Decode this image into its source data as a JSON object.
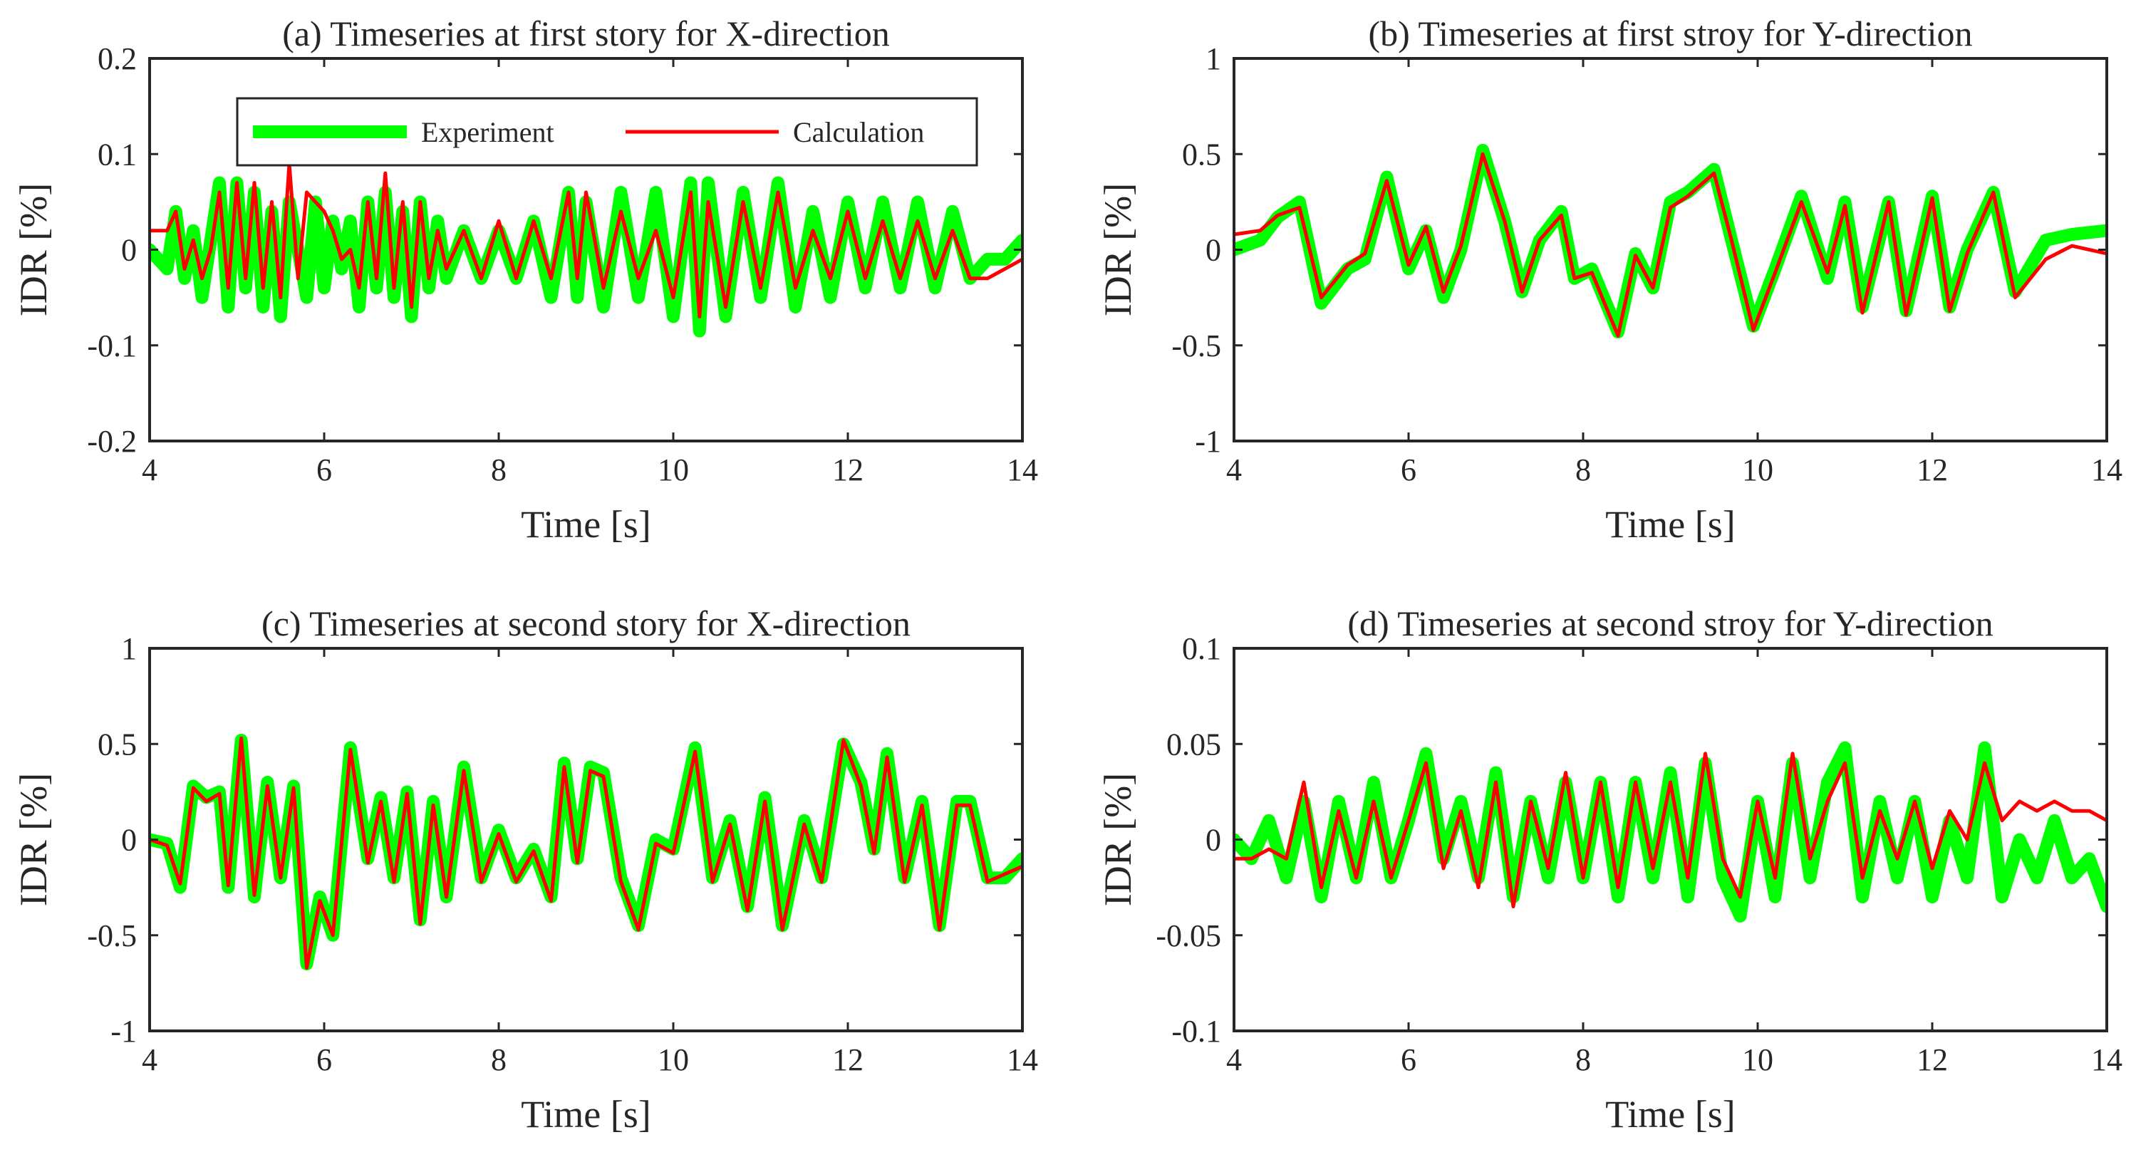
{
  "figure": {
    "legend": {
      "experiment_label": "Experiment",
      "calculation_label": "Calculation",
      "experiment_color": "#00ff00",
      "calculation_color": "#ff0000"
    }
  },
  "chart_data": [
    {
      "id": "a",
      "type": "line",
      "title": "(a) Timeseries at first story for X-direction",
      "xlabel": "Time [s]",
      "ylabel": "IDR [%]",
      "xlim": [
        4,
        14
      ],
      "ylim": [
        -0.2,
        0.2
      ],
      "xticks": [
        4,
        6,
        8,
        10,
        12,
        14
      ],
      "xtick_labels": [
        "4",
        "6",
        "8",
        "10",
        "12",
        "14"
      ],
      "yticks": [
        0.2,
        0.1,
        0,
        -0.1,
        -0.2
      ],
      "ytick_labels": [
        "0.2",
        "0.1",
        "0",
        "-0.1",
        "-0.2"
      ],
      "legend": true,
      "series": [
        {
          "name": "Experiment",
          "x": [
            4.0,
            4.2,
            4.3,
            4.4,
            4.5,
            4.6,
            4.7,
            4.8,
            4.9,
            5.0,
            5.1,
            5.2,
            5.3,
            5.4,
            5.5,
            5.6,
            5.7,
            5.8,
            5.9,
            6.0,
            6.1,
            6.2,
            6.3,
            6.4,
            6.5,
            6.6,
            6.7,
            6.8,
            6.9,
            7.0,
            7.1,
            7.2,
            7.3,
            7.4,
            7.6,
            7.8,
            8.0,
            8.2,
            8.4,
            8.6,
            8.8,
            8.9,
            9.0,
            9.2,
            9.4,
            9.6,
            9.8,
            10.0,
            10.2,
            10.3,
            10.4,
            10.6,
            10.8,
            11.0,
            11.2,
            11.4,
            11.6,
            11.8,
            12.0,
            12.2,
            12.4,
            12.6,
            12.8,
            13.0,
            13.2,
            13.4,
            13.6,
            13.8,
            14.0
          ],
          "y": [
            0.0,
            -0.02,
            0.04,
            -0.03,
            0.02,
            -0.05,
            0.01,
            0.07,
            -0.06,
            0.07,
            -0.04,
            0.06,
            -0.06,
            0.04,
            -0.07,
            0.05,
            0.0,
            -0.05,
            0.05,
            -0.04,
            0.03,
            -0.02,
            0.03,
            -0.06,
            0.05,
            -0.04,
            0.06,
            -0.05,
            0.04,
            -0.07,
            0.05,
            -0.04,
            0.03,
            -0.03,
            0.02,
            -0.03,
            0.02,
            -0.03,
            0.03,
            -0.05,
            0.06,
            -0.05,
            0.05,
            -0.06,
            0.06,
            -0.05,
            0.06,
            -0.07,
            0.07,
            -0.085,
            0.07,
            -0.07,
            0.06,
            -0.05,
            0.07,
            -0.06,
            0.04,
            -0.05,
            0.05,
            -0.04,
            0.05,
            -0.04,
            0.05,
            -0.04,
            0.04,
            -0.03,
            -0.01,
            -0.01,
            0.01
          ]
        },
        {
          "name": "Calculation",
          "x": [
            4.0,
            4.2,
            4.3,
            4.4,
            4.5,
            4.6,
            4.7,
            4.8,
            4.9,
            5.0,
            5.1,
            5.2,
            5.3,
            5.4,
            5.5,
            5.6,
            5.7,
            5.8,
            5.9,
            6.0,
            6.1,
            6.2,
            6.3,
            6.4,
            6.5,
            6.6,
            6.7,
            6.8,
            6.9,
            7.0,
            7.1,
            7.2,
            7.3,
            7.4,
            7.6,
            7.8,
            8.0,
            8.2,
            8.4,
            8.6,
            8.8,
            8.9,
            9.0,
            9.2,
            9.4,
            9.6,
            9.8,
            10.0,
            10.2,
            10.3,
            10.4,
            10.6,
            10.8,
            11.0,
            11.2,
            11.4,
            11.6,
            11.8,
            12.0,
            12.2,
            12.4,
            12.6,
            12.8,
            13.0,
            13.2,
            13.4,
            13.6,
            13.8,
            14.0
          ],
          "y": [
            0.02,
            0.02,
            0.04,
            -0.02,
            0.01,
            -0.03,
            0.0,
            0.06,
            -0.04,
            0.07,
            -0.03,
            0.07,
            -0.04,
            0.05,
            -0.05,
            0.09,
            -0.03,
            0.06,
            0.05,
            0.04,
            0.02,
            -0.01,
            0.0,
            -0.04,
            0.05,
            -0.03,
            0.08,
            -0.04,
            0.05,
            -0.06,
            0.05,
            -0.03,
            0.02,
            -0.02,
            0.02,
            -0.03,
            0.03,
            -0.03,
            0.03,
            -0.03,
            0.06,
            -0.03,
            0.06,
            -0.04,
            0.04,
            -0.03,
            0.02,
            -0.05,
            0.06,
            -0.07,
            0.05,
            -0.06,
            0.05,
            -0.04,
            0.06,
            -0.04,
            0.02,
            -0.03,
            0.04,
            -0.03,
            0.03,
            -0.03,
            0.03,
            -0.03,
            0.02,
            -0.03,
            -0.03,
            -0.02,
            -0.01
          ]
        }
      ]
    },
    {
      "id": "b",
      "type": "line",
      "title": "(b) Timeseries at first stroy for Y-direction",
      "xlabel": "Time [s]",
      "ylabel": "IDR [%]",
      "xlim": [
        4,
        14
      ],
      "ylim": [
        -1,
        1
      ],
      "xticks": [
        4,
        6,
        8,
        10,
        12,
        14
      ],
      "xtick_labels": [
        "4",
        "6",
        "8",
        "10",
        "12",
        "14"
      ],
      "yticks": [
        1,
        0.5,
        0,
        -0.5,
        -1
      ],
      "ytick_labels": [
        "1",
        "0.5",
        "0",
        "-0.5",
        "-1"
      ],
      "legend": false,
      "series": [
        {
          "name": "Experiment",
          "x": [
            4.0,
            4.3,
            4.5,
            4.75,
            5.0,
            5.3,
            5.5,
            5.75,
            6.0,
            6.2,
            6.4,
            6.6,
            6.85,
            7.1,
            7.3,
            7.5,
            7.75,
            7.9,
            8.1,
            8.4,
            8.6,
            8.8,
            9.0,
            9.2,
            9.5,
            9.7,
            9.95,
            10.2,
            10.5,
            10.8,
            11.0,
            11.2,
            11.5,
            11.7,
            12.0,
            12.2,
            12.4,
            12.7,
            12.95,
            13.3,
            13.6,
            14.0
          ],
          "y": [
            0.0,
            0.05,
            0.17,
            0.25,
            -0.28,
            -0.1,
            -0.05,
            0.38,
            -0.1,
            0.1,
            -0.25,
            0.0,
            0.52,
            0.15,
            -0.22,
            0.05,
            0.2,
            -0.15,
            -0.1,
            -0.43,
            -0.02,
            -0.2,
            0.25,
            0.3,
            0.42,
            0.05,
            -0.4,
            -0.1,
            0.28,
            -0.15,
            0.25,
            -0.3,
            0.25,
            -0.32,
            0.28,
            -0.3,
            0.0,
            0.3,
            -0.22,
            0.05,
            0.08,
            0.1
          ]
        },
        {
          "name": "Calculation",
          "x": [
            4.0,
            4.3,
            4.5,
            4.75,
            5.0,
            5.3,
            5.5,
            5.75,
            6.0,
            6.2,
            6.4,
            6.6,
            6.85,
            7.1,
            7.3,
            7.5,
            7.75,
            7.9,
            8.1,
            8.4,
            8.6,
            8.8,
            9.0,
            9.2,
            9.5,
            9.7,
            9.95,
            10.2,
            10.5,
            10.8,
            11.0,
            11.2,
            11.5,
            11.7,
            12.0,
            12.2,
            12.4,
            12.7,
            12.95,
            13.3,
            13.6,
            14.0
          ],
          "y": [
            0.08,
            0.1,
            0.18,
            0.22,
            -0.25,
            -0.08,
            -0.02,
            0.36,
            -0.08,
            0.12,
            -0.22,
            0.02,
            0.5,
            0.15,
            -0.22,
            0.05,
            0.18,
            -0.15,
            -0.12,
            -0.45,
            -0.03,
            -0.2,
            0.22,
            0.28,
            0.4,
            0.05,
            -0.42,
            -0.12,
            0.25,
            -0.12,
            0.23,
            -0.33,
            0.25,
            -0.34,
            0.27,
            -0.32,
            -0.02,
            0.3,
            -0.25,
            -0.05,
            0.02,
            -0.02
          ]
        }
      ]
    },
    {
      "id": "c",
      "type": "line",
      "title": "(c) Timeseries at second story for X-direction",
      "xlabel": "Time [s]",
      "ylabel": "IDR [%]",
      "xlim": [
        4,
        14
      ],
      "ylim": [
        -1,
        1
      ],
      "xticks": [
        4,
        6,
        8,
        10,
        12,
        14
      ],
      "xtick_labels": [
        "4",
        "6",
        "8",
        "10",
        "12",
        "14"
      ],
      "yticks": [
        1,
        0.5,
        0,
        -0.5,
        -1
      ],
      "ytick_labels": [
        "1",
        "0.5",
        "0",
        "-0.5",
        "-1"
      ],
      "legend": false,
      "series": [
        {
          "name": "Experiment",
          "x": [
            4.0,
            4.2,
            4.35,
            4.5,
            4.65,
            4.8,
            4.9,
            5.05,
            5.2,
            5.35,
            5.5,
            5.65,
            5.8,
            5.95,
            6.1,
            6.3,
            6.5,
            6.65,
            6.8,
            6.95,
            7.1,
            7.25,
            7.4,
            7.6,
            7.8,
            8.0,
            8.2,
            8.4,
            8.6,
            8.75,
            8.9,
            9.05,
            9.2,
            9.4,
            9.6,
            9.8,
            10.0,
            10.25,
            10.45,
            10.65,
            10.85,
            11.05,
            11.25,
            11.5,
            11.7,
            11.95,
            12.15,
            12.3,
            12.45,
            12.65,
            12.85,
            13.05,
            13.25,
            13.4,
            13.6,
            13.8,
            14.0
          ],
          "y": [
            0.0,
            -0.02,
            -0.25,
            0.28,
            0.22,
            0.25,
            -0.25,
            0.52,
            -0.3,
            0.3,
            -0.2,
            0.28,
            -0.65,
            -0.3,
            -0.5,
            0.48,
            -0.1,
            0.22,
            -0.2,
            0.25,
            -0.42,
            0.2,
            -0.3,
            0.38,
            -0.2,
            0.05,
            -0.2,
            -0.05,
            -0.3,
            0.4,
            -0.1,
            0.38,
            0.35,
            -0.2,
            -0.45,
            0.0,
            -0.05,
            0.48,
            -0.2,
            0.1,
            -0.35,
            0.22,
            -0.45,
            0.1,
            -0.2,
            0.5,
            0.3,
            -0.05,
            0.45,
            -0.2,
            0.2,
            -0.45,
            0.2,
            0.2,
            -0.2,
            -0.2,
            -0.1
          ]
        },
        {
          "name": "Calculation",
          "x": [
            4.0,
            4.2,
            4.35,
            4.5,
            4.65,
            4.8,
            4.9,
            5.05,
            5.2,
            5.35,
            5.5,
            5.65,
            5.8,
            5.95,
            6.1,
            6.3,
            6.5,
            6.65,
            6.8,
            6.95,
            7.1,
            7.25,
            7.4,
            7.6,
            7.8,
            8.0,
            8.2,
            8.4,
            8.6,
            8.75,
            8.9,
            9.05,
            9.2,
            9.4,
            9.6,
            9.8,
            10.0,
            10.25,
            10.45,
            10.65,
            10.85,
            11.05,
            11.25,
            11.5,
            11.7,
            11.95,
            12.15,
            12.3,
            12.45,
            12.65,
            12.85,
            13.05,
            13.25,
            13.4,
            13.6,
            13.8,
            14.0
          ],
          "y": [
            0.0,
            -0.03,
            -0.23,
            0.27,
            0.2,
            0.24,
            -0.24,
            0.53,
            -0.29,
            0.28,
            -0.2,
            0.27,
            -0.67,
            -0.32,
            -0.5,
            0.47,
            -0.12,
            0.2,
            -0.22,
            0.24,
            -0.44,
            0.18,
            -0.3,
            0.36,
            -0.22,
            0.03,
            -0.22,
            -0.06,
            -0.32,
            0.38,
            -0.12,
            0.36,
            0.33,
            -0.22,
            -0.47,
            -0.02,
            -0.07,
            0.46,
            -0.22,
            0.08,
            -0.37,
            0.2,
            -0.47,
            0.08,
            -0.22,
            0.52,
            0.28,
            -0.07,
            0.43,
            -0.22,
            0.18,
            -0.47,
            0.18,
            0.18,
            -0.22,
            -0.18,
            -0.14
          ]
        }
      ]
    },
    {
      "id": "d",
      "type": "line",
      "title": "(d) Timeseries at second stroy for Y-direction",
      "xlabel": "Time [s]",
      "ylabel": "IDR [%]",
      "xlim": [
        4,
        14
      ],
      "ylim": [
        -0.1,
        0.1
      ],
      "xticks": [
        4,
        6,
        8,
        10,
        12,
        14
      ],
      "xtick_labels": [
        "4",
        "6",
        "8",
        "10",
        "12",
        "14"
      ],
      "yticks": [
        0.1,
        0.05,
        0,
        -0.05,
        -0.1
      ],
      "ytick_labels": [
        "0.1",
        "0.05",
        "0",
        "-0.05",
        "-0.1"
      ],
      "legend": false,
      "series": [
        {
          "name": "Experiment",
          "x": [
            4.0,
            4.2,
            4.4,
            4.6,
            4.8,
            5.0,
            5.2,
            5.4,
            5.6,
            5.8,
            6.0,
            6.2,
            6.4,
            6.6,
            6.8,
            7.0,
            7.2,
            7.4,
            7.6,
            7.8,
            8.0,
            8.2,
            8.4,
            8.6,
            8.8,
            9.0,
            9.2,
            9.4,
            9.6,
            9.8,
            10.0,
            10.2,
            10.4,
            10.6,
            10.8,
            11.0,
            11.2,
            11.4,
            11.6,
            11.8,
            12.0,
            12.2,
            12.4,
            12.6,
            12.8,
            13.0,
            13.2,
            13.4,
            13.6,
            13.8,
            14.0
          ],
          "y": [
            0.0,
            -0.01,
            0.01,
            -0.02,
            0.02,
            -0.03,
            0.02,
            -0.02,
            0.03,
            -0.02,
            0.01,
            0.045,
            -0.01,
            0.02,
            -0.02,
            0.035,
            -0.03,
            0.02,
            -0.02,
            0.03,
            -0.02,
            0.03,
            -0.03,
            0.03,
            -0.02,
            0.035,
            -0.03,
            0.04,
            -0.02,
            -0.04,
            0.02,
            -0.03,
            0.04,
            -0.02,
            0.03,
            0.048,
            -0.03,
            0.02,
            -0.02,
            0.02,
            -0.03,
            0.01,
            -0.02,
            0.048,
            -0.03,
            0.0,
            -0.02,
            0.01,
            -0.02,
            -0.01,
            -0.035
          ]
        },
        {
          "name": "Calculation",
          "x": [
            4.0,
            4.2,
            4.4,
            4.6,
            4.8,
            5.0,
            5.2,
            5.4,
            5.6,
            5.8,
            6.0,
            6.2,
            6.4,
            6.6,
            6.8,
            7.0,
            7.2,
            7.4,
            7.6,
            7.8,
            8.0,
            8.2,
            8.4,
            8.6,
            8.8,
            9.0,
            9.2,
            9.4,
            9.6,
            9.8,
            10.0,
            10.2,
            10.4,
            10.6,
            10.8,
            11.0,
            11.2,
            11.4,
            11.6,
            11.8,
            12.0,
            12.2,
            12.4,
            12.6,
            12.8,
            13.0,
            13.2,
            13.4,
            13.6,
            13.8,
            14.0
          ],
          "y": [
            -0.01,
            -0.01,
            -0.005,
            -0.01,
            0.03,
            -0.025,
            0.015,
            -0.02,
            0.02,
            -0.02,
            0.01,
            0.04,
            -0.015,
            0.015,
            -0.025,
            0.03,
            -0.035,
            0.02,
            -0.015,
            0.035,
            -0.02,
            0.03,
            -0.025,
            0.03,
            -0.015,
            0.03,
            -0.02,
            0.045,
            -0.01,
            -0.03,
            0.02,
            -0.02,
            0.045,
            -0.01,
            0.02,
            0.04,
            -0.02,
            0.015,
            -0.01,
            0.02,
            -0.015,
            0.015,
            0.0,
            0.04,
            0.01,
            0.02,
            0.015,
            0.02,
            0.015,
            0.015,
            0.01
          ]
        }
      ]
    }
  ]
}
